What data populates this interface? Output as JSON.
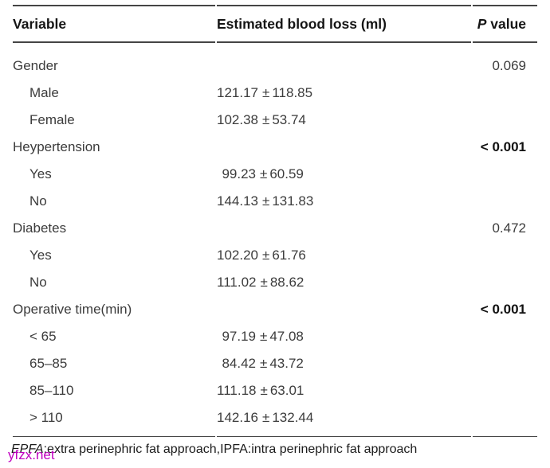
{
  "table": {
    "header": {
      "variable": "Variable",
      "ebl": "Estimated blood loss (ml)",
      "p_italic": "P",
      "p_rest": " value"
    },
    "plus_minus": "±",
    "rows": [
      {
        "label": "Gender",
        "p": "0.069",
        "p_bold": false
      },
      {
        "label": "Male",
        "mean": "121.17",
        "sd": "118.85"
      },
      {
        "label": "Female",
        "mean": "102.38",
        "sd": "53.74"
      },
      {
        "label": "Heypertension",
        "p": "< 0.001",
        "p_bold": true
      },
      {
        "label": "Yes",
        "mean": "99.23",
        "sd": "60.59"
      },
      {
        "label": "No",
        "mean": "144.13",
        "sd": "131.83"
      },
      {
        "label": "Diabetes",
        "p": "0.472",
        "p_bold": false
      },
      {
        "label": "Yes",
        "mean": "102.20",
        "sd": "61.76"
      },
      {
        "label": "No",
        "mean": "111.02",
        "sd": "88.62"
      },
      {
        "label": "Operative time(min)",
        "p": "< 0.001",
        "p_bold": true
      },
      {
        "label": "< 65",
        "mean": "97.19",
        "sd": "47.08"
      },
      {
        "label": "65–85",
        "mean": "84.42",
        "sd": "43.72"
      },
      {
        "label": "85–110",
        "mean": "111.18",
        "sd": "63.01"
      },
      {
        "label": "> 110",
        "mean": "142.16",
        "sd": "132.44"
      }
    ]
  },
  "footnote": {
    "abbr": "EPFA",
    "rest": ":extra perinephric fat approach,IPFA:intra perinephric fat approach"
  },
  "watermark": {
    "text": "yfzx.net",
    "color": "#c000c0"
  },
  "colors": {
    "rule": "#454545",
    "header_text": "#151515",
    "body_text": "#3c3c3c"
  }
}
